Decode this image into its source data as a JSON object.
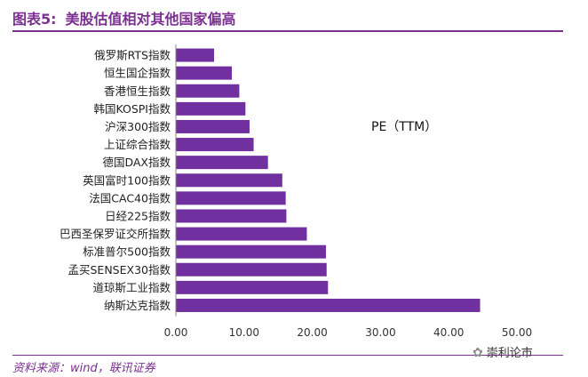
{
  "figure": {
    "number": "图表5:",
    "title": "美股估值相对其他国家偏高",
    "source": "资料来源：wind，联讯证券",
    "watermark": "崇利论市"
  },
  "colors": {
    "bar": "#7030a0",
    "accent": "#7b2f91"
  },
  "chart_data": {
    "type": "bar",
    "orientation": "horizontal",
    "annotation": "PE（TTM）",
    "categories": [
      "俄罗斯RTS指数",
      "恒生国企指数",
      "香港恒生指数",
      "韩国KOSPI指数",
      "沪深300指数",
      "上证综合指数",
      "德国DAX指数",
      "英国富时100指数",
      "法国CAC40指数",
      "日经225指数",
      "巴西圣保罗证交所指数",
      "标准普尔500指数",
      "孟买SENSEX30指数",
      "道琼斯工业指数",
      "纳斯达克指数"
    ],
    "values": [
      5.6,
      8.2,
      9.3,
      10.2,
      10.8,
      11.4,
      13.5,
      15.6,
      16.1,
      16.2,
      19.2,
      22.0,
      22.1,
      22.3,
      44.6
    ],
    "xlim": [
      0,
      50
    ],
    "xticks": [
      "0.00",
      "10.00",
      "20.00",
      "30.00",
      "40.00",
      "50.00"
    ],
    "xtick_values": [
      0,
      10,
      20,
      30,
      40,
      50
    ],
    "grid": false,
    "legend": "none"
  }
}
